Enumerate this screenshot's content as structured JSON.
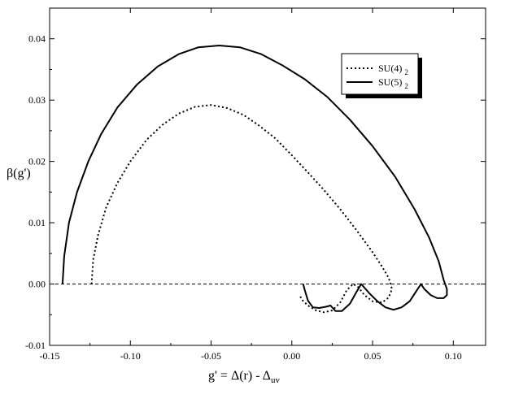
{
  "chart_data": {
    "type": "line",
    "xlabel": "g' = Δ(r) - Δ",
    "xlabel_sub": "uv",
    "ylabel": "β(g')",
    "xlim": [
      -0.15,
      0.12
    ],
    "ylim": [
      -0.01,
      0.045
    ],
    "x_ticks": [
      -0.15,
      -0.1,
      -0.05,
      0.0,
      0.05,
      0.1
    ],
    "x_tick_labels": [
      "-0.15",
      "-0.10",
      "-0.05",
      "0.00",
      "0.05",
      "0.10"
    ],
    "y_ticks": [
      -0.01,
      0.0,
      0.01,
      0.02,
      0.03,
      0.04
    ],
    "y_tick_labels": [
      "-0.01",
      "0.00",
      "0.01",
      "0.02",
      "0.03",
      "0.04"
    ],
    "grid": false,
    "legend_position": "top-right",
    "reference_line": {
      "y": 0,
      "style": "dashed"
    },
    "series": [
      {
        "name": "SU(4)",
        "subscript": "2",
        "style": "dotted",
        "color": "#000000",
        "x": [
          -0.124,
          -0.123,
          -0.12,
          -0.115,
          -0.108,
          -0.1,
          -0.09,
          -0.08,
          -0.07,
          -0.06,
          -0.05,
          -0.04,
          -0.03,
          -0.02,
          -0.01,
          0.0,
          0.01,
          0.02,
          0.03,
          0.04,
          0.05,
          0.056,
          0.06,
          0.062,
          0.06,
          0.056,
          0.05,
          0.045,
          0.041,
          0.038,
          0.034,
          0.03,
          0.025,
          0.02,
          0.015,
          0.01,
          0.006,
          0.005
        ],
        "y": [
          0.0,
          0.004,
          0.008,
          0.0125,
          0.0165,
          0.02,
          0.0235,
          0.026,
          0.0278,
          0.0289,
          0.0292,
          0.0287,
          0.0276,
          0.0258,
          0.0237,
          0.021,
          0.0182,
          0.0153,
          0.0122,
          0.0088,
          0.0052,
          0.0028,
          0.001,
          -0.0008,
          -0.0022,
          -0.003,
          -0.0028,
          -0.0018,
          -0.0005,
          0.0,
          -0.001,
          -0.003,
          -0.0043,
          -0.0046,
          -0.0043,
          -0.0035,
          -0.0025,
          -0.0018
        ]
      },
      {
        "name": "SU(5)",
        "subscript": "2",
        "style": "solid",
        "color": "#000000",
        "x": [
          -0.142,
          -0.141,
          -0.138,
          -0.133,
          -0.126,
          -0.118,
          -0.108,
          -0.096,
          -0.083,
          -0.07,
          -0.058,
          -0.045,
          -0.032,
          -0.019,
          -0.006,
          0.008,
          0.022,
          0.036,
          0.05,
          0.064,
          0.076,
          0.085,
          0.091,
          0.094,
          0.096,
          0.096,
          0.094,
          0.09,
          0.086,
          0.082,
          0.08,
          0.077,
          0.073,
          0.068,
          0.063,
          0.058,
          0.053,
          0.048,
          0.044,
          0.043,
          0.04,
          0.036,
          0.031,
          0.027,
          0.024,
          0.021,
          0.017,
          0.013,
          0.01,
          0.008,
          0.007
        ],
        "y": [
          0.0,
          0.0045,
          0.01,
          0.015,
          0.02,
          0.0245,
          0.0288,
          0.0325,
          0.0355,
          0.0375,
          0.0386,
          0.0389,
          0.0386,
          0.0375,
          0.0357,
          0.0334,
          0.0305,
          0.0268,
          0.0225,
          0.0175,
          0.0122,
          0.0076,
          0.0037,
          0.0007,
          -0.0008,
          -0.0018,
          -0.0023,
          -0.0023,
          -0.0018,
          -0.0008,
          0.0,
          -0.0012,
          -0.0028,
          -0.0038,
          -0.0042,
          -0.0038,
          -0.0028,
          -0.0015,
          -0.0003,
          0.0,
          -0.0013,
          -0.0032,
          -0.0044,
          -0.0044,
          -0.0035,
          -0.0037,
          -0.0039,
          -0.0038,
          -0.0027,
          -0.001,
          0.0
        ]
      }
    ]
  }
}
